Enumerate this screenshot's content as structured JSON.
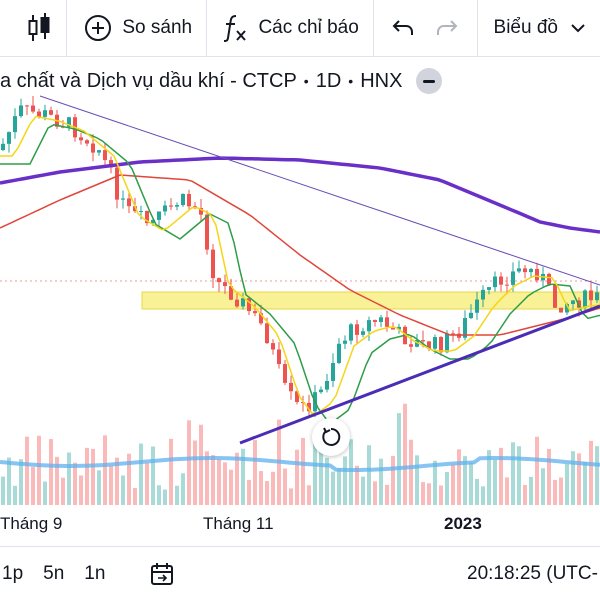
{
  "toolbar": {
    "compare_label": "So sánh",
    "indicators_label": "Các chỉ báo",
    "chart_type_label": "Biểu đồ"
  },
  "legend": {
    "symbol_name": "a chất và Dịch vụ dầu khí - CTCP",
    "interval": "1D",
    "exchange": "HNX"
  },
  "xaxis": {
    "ticks": [
      "Tháng 9",
      "Tháng 11",
      "2023"
    ]
  },
  "bottom": {
    "ranges": [
      "1p",
      "5n",
      "1n"
    ],
    "clock": "20:18:25 (UTC-"
  },
  "colors": {
    "up": "#26a69a",
    "down": "#ef5350",
    "ma_fast": "#f5d614",
    "ma_mid": "#2e9d47",
    "ma_slow": "#e0463b",
    "ma_long": "#6a2fc7",
    "volume_ma": "#5fb0ee",
    "zone": "#f8ee7a"
  },
  "icons": {
    "candles": "candlestick-icon",
    "compare": "plus-circle-icon",
    "indicators": "fx-icon",
    "undo": "undo-icon",
    "redo": "redo-icon",
    "date_range": "calendar-range-icon",
    "reset": "reset-chart-icon"
  }
}
